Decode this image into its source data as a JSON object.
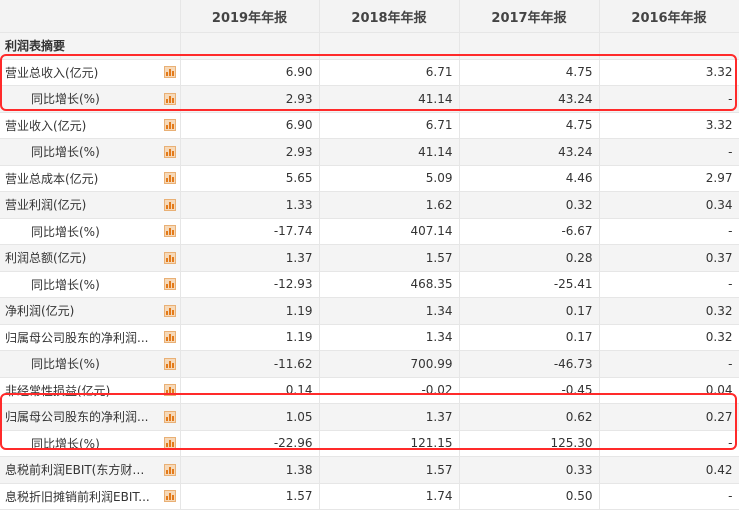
{
  "columns": [
    "",
    "2019年年报",
    "2018年年报",
    "2017年年报",
    "2016年年报"
  ],
  "section_title": "利润表摘要",
  "rows": [
    {
      "label": "营业总收入(亿元)",
      "indent": false,
      "values": [
        "6.90",
        "6.71",
        "4.75",
        "3.32"
      ]
    },
    {
      "label": "同比增长(%)",
      "indent": true,
      "values": [
        "2.93",
        "41.14",
        "43.24",
        "-"
      ]
    },
    {
      "label": "营业收入(亿元)",
      "indent": false,
      "values": [
        "6.90",
        "6.71",
        "4.75",
        "3.32"
      ]
    },
    {
      "label": "同比增长(%)",
      "indent": true,
      "values": [
        "2.93",
        "41.14",
        "43.24",
        "-"
      ]
    },
    {
      "label": "营业总成本(亿元)",
      "indent": false,
      "values": [
        "5.65",
        "5.09",
        "4.46",
        "2.97"
      ]
    },
    {
      "label": "营业利润(亿元)",
      "indent": false,
      "values": [
        "1.33",
        "1.62",
        "0.32",
        "0.34"
      ]
    },
    {
      "label": "同比增长(%)",
      "indent": true,
      "values": [
        "-17.74",
        "407.14",
        "-6.67",
        "-"
      ]
    },
    {
      "label": "利润总额(亿元)",
      "indent": false,
      "values": [
        "1.37",
        "1.57",
        "0.28",
        "0.37"
      ]
    },
    {
      "label": "同比增长(%)",
      "indent": true,
      "values": [
        "-12.93",
        "468.35",
        "-25.41",
        "-"
      ]
    },
    {
      "label": "净利润(亿元)",
      "indent": false,
      "values": [
        "1.19",
        "1.34",
        "0.17",
        "0.32"
      ]
    },
    {
      "label": "归属母公司股东的净利润...",
      "indent": false,
      "values": [
        "1.19",
        "1.34",
        "0.17",
        "0.32"
      ]
    },
    {
      "label": "同比增长(%)",
      "indent": true,
      "values": [
        "-11.62",
        "700.99",
        "-46.73",
        "-"
      ]
    },
    {
      "label": "非经常性损益(亿元)",
      "indent": false,
      "values": [
        "0.14",
        "-0.02",
        "-0.45",
        "0.04"
      ]
    },
    {
      "label": "归属母公司股东的净利润...",
      "indent": false,
      "values": [
        "1.05",
        "1.37",
        "0.62",
        "0.27"
      ]
    },
    {
      "label": "同比增长(%)",
      "indent": true,
      "values": [
        "-22.96",
        "121.15",
        "125.30",
        "-"
      ]
    },
    {
      "label": "息税前利润EBIT(东方财富...",
      "indent": false,
      "values": [
        "1.38",
        "1.57",
        "0.33",
        "0.42"
      ]
    },
    {
      "label": "息税折旧摊销前利润EBIT...",
      "indent": false,
      "values": [
        "1.57",
        "1.74",
        "0.50",
        "-"
      ]
    }
  ],
  "colors": {
    "highlight": "#ff2a2a",
    "icon": "#e37a1a"
  }
}
